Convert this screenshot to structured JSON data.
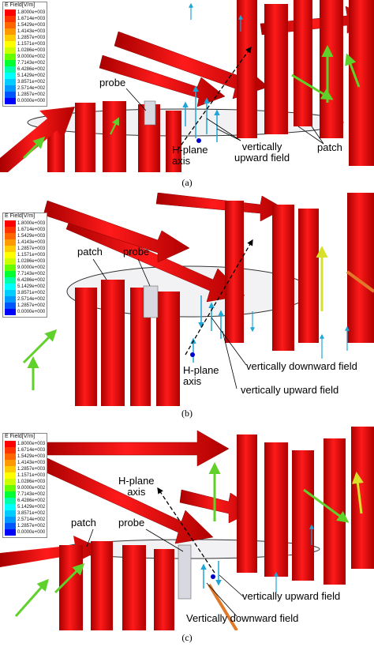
{
  "legend": {
    "title": "E Field[V/m]",
    "values": [
      "1.8000e+003",
      "1.6714e+003",
      "1.5429e+003",
      "1.4143e+003",
      "1.2857e+003",
      "1.1571e+003",
      "1.0286e+003",
      "9.0000e+002",
      "7.7143e+002",
      "6.4286e+002",
      "5.1429e+002",
      "3.8571e+002",
      "2.5714e+002",
      "1.2857e+002",
      "0.0000e+000"
    ],
    "colors": [
      "#ff0000",
      "#ff3300",
      "#ff6600",
      "#ff9900",
      "#ffcc00",
      "#ffff00",
      "#ccff00",
      "#66ff00",
      "#00ff33",
      "#00ffaa",
      "#00ffff",
      "#00ccff",
      "#0099ff",
      "#0055ff",
      "#0000ff"
    ]
  },
  "panels": [
    {
      "caption": "(a)",
      "labels": {
        "probe": "probe",
        "hplane_line1": "H-plane",
        "hplane_line2": "axis",
        "upward_line1": "vertically",
        "upward_line2": "upward field",
        "patch": "patch"
      }
    },
    {
      "caption": "(b)",
      "labels": {
        "patch": "patch",
        "probe": "probe",
        "hplane_line1": "H-plane",
        "hplane_line2": "axis",
        "downward": "vertically downward field",
        "upward": "vertically upward field"
      }
    },
    {
      "caption": "(c)",
      "labels": {
        "hplane_line1": "H-plane",
        "hplane_line2": "axis",
        "patch": "patch",
        "probe": "probe",
        "upward": "vertically upward field",
        "downward": "Vertically downward field"
      }
    }
  ]
}
